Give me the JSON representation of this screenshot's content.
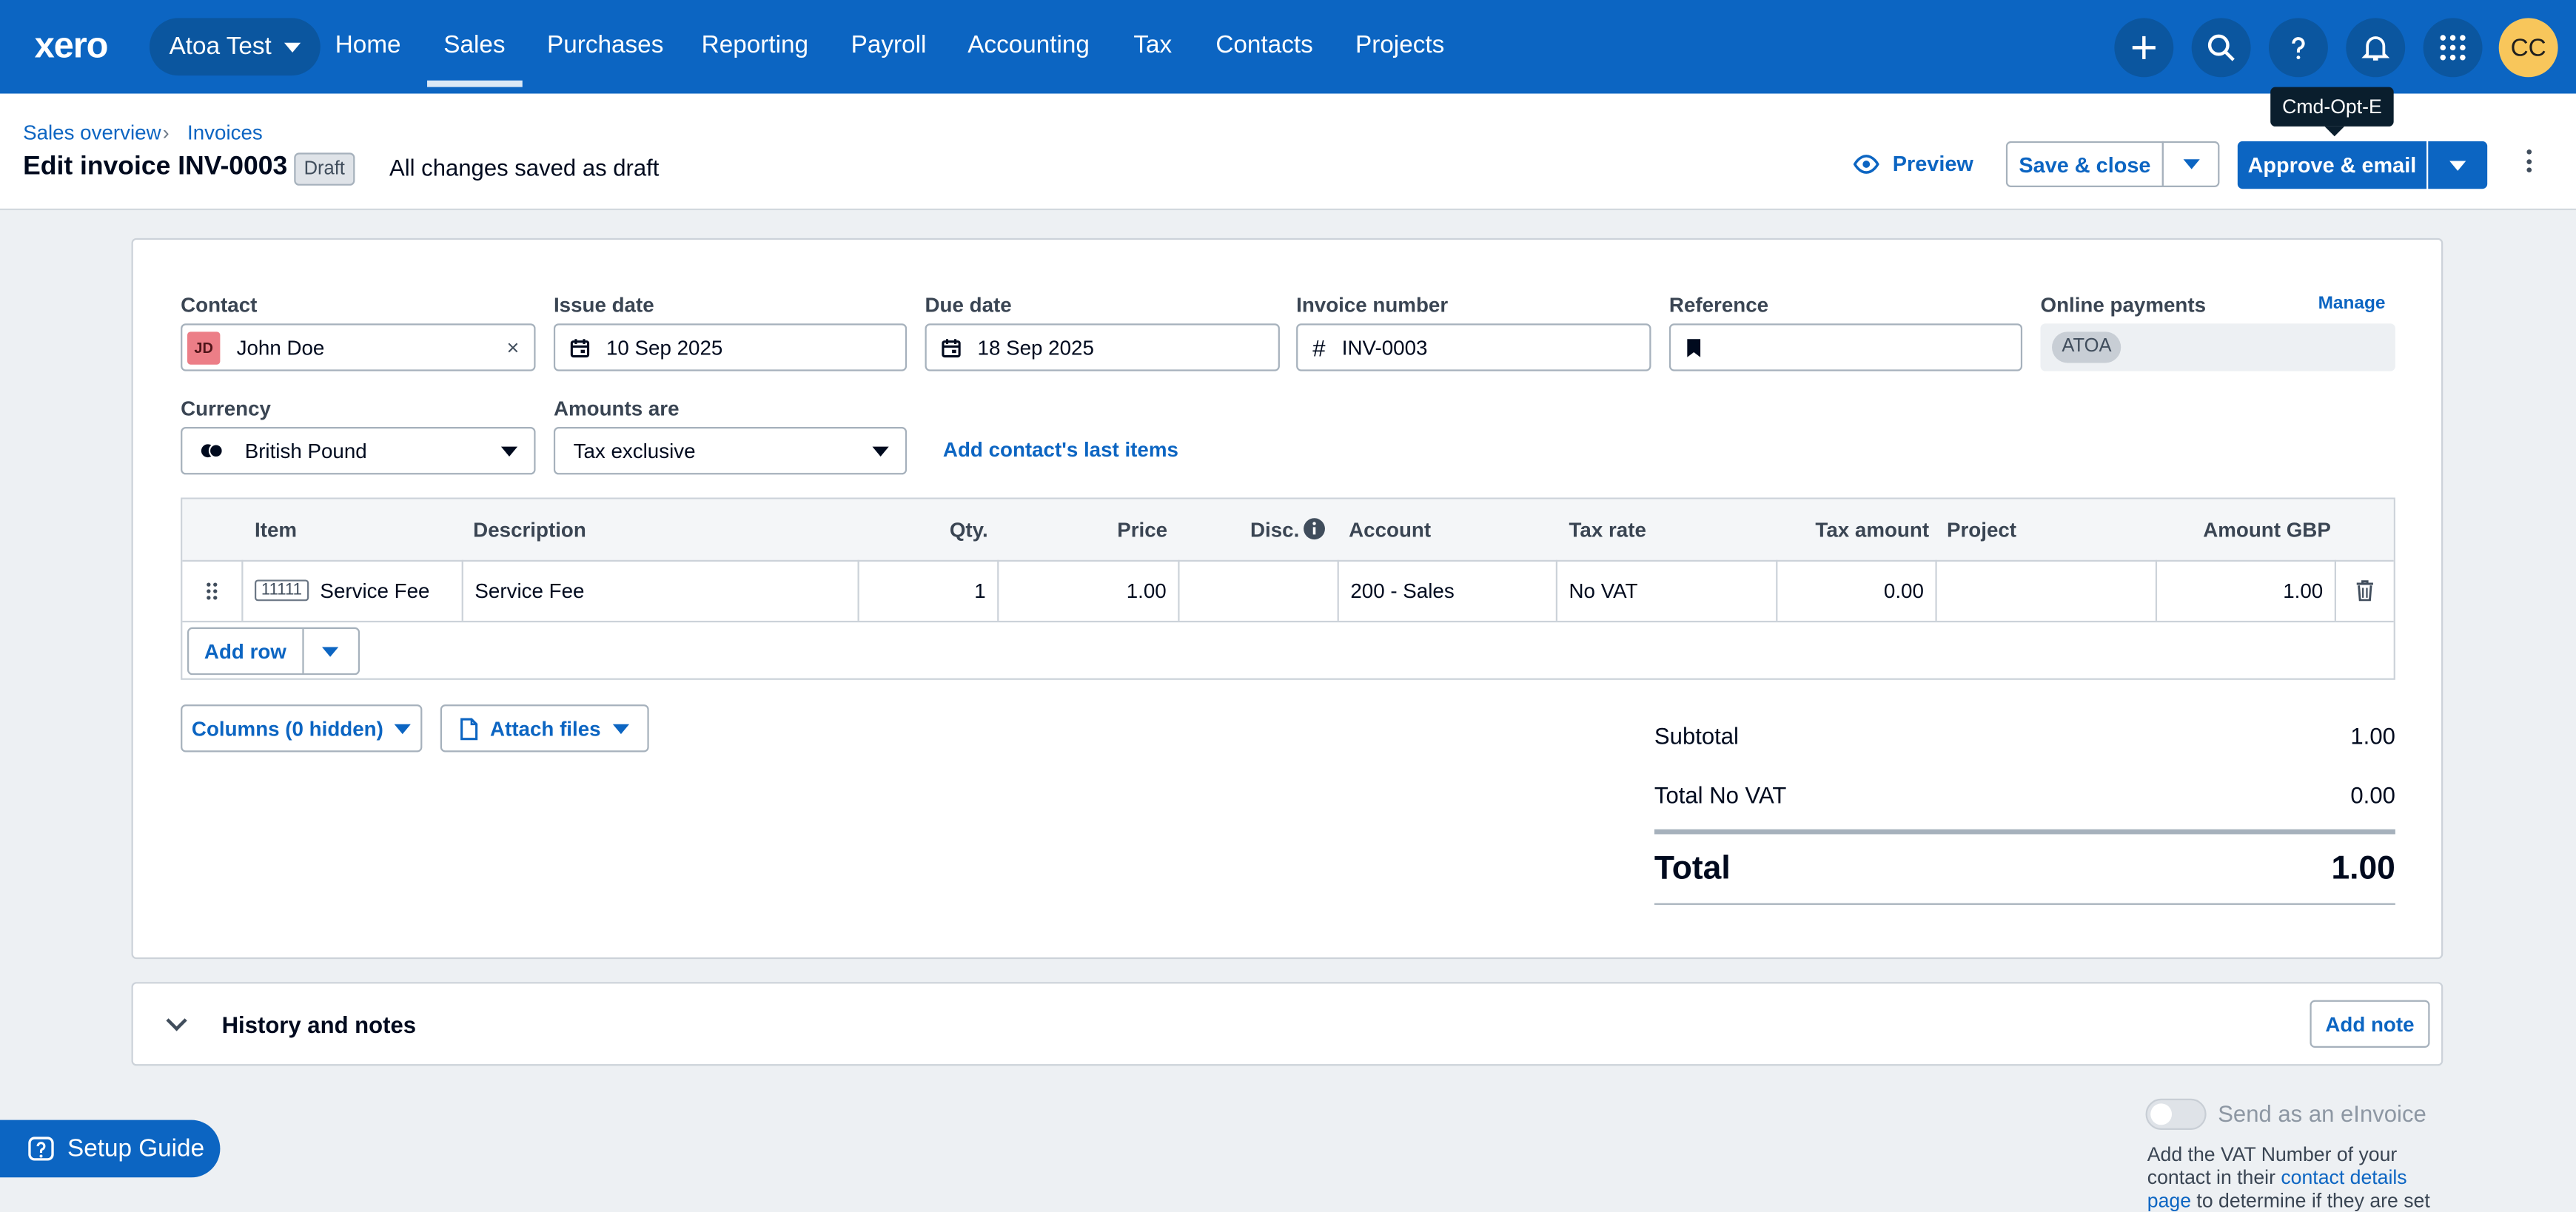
{
  "nav": {
    "logo": "xero",
    "org_name": "Atoa Test",
    "items": [
      "Home",
      "Sales",
      "Purchases",
      "Reporting",
      "Payroll",
      "Accounting",
      "Tax",
      "Contacts",
      "Projects"
    ],
    "active": "Sales",
    "avatar_initials": "CC"
  },
  "breadcrumb": [
    "Sales overview",
    "Invoices"
  ],
  "header": {
    "title": "Edit invoice INV-0003",
    "badge": "Draft",
    "status": "All changes saved as draft",
    "preview": "Preview",
    "save_close": "Save & close",
    "approve_email": "Approve & email",
    "tooltip": "Cmd-Opt-E"
  },
  "form": {
    "contact_label": "Contact",
    "contact_initials": "JD",
    "contact_value": "John Doe",
    "issue_date_label": "Issue date",
    "issue_date_value": "10 Sep 2025",
    "due_date_label": "Due date",
    "due_date_value": "18 Sep 2025",
    "invoice_number_label": "Invoice number",
    "invoice_number_value": "INV-0003",
    "reference_label": "Reference",
    "reference_value": "",
    "online_payments_label": "Online payments",
    "manage": "Manage",
    "online_payments_chip": "ATOA",
    "currency_label": "Currency",
    "currency_value": "British Pound",
    "amounts_label": "Amounts are",
    "amounts_value": "Tax exclusive",
    "add_last_items": "Add contact's last items"
  },
  "table": {
    "headers": {
      "item": "Item",
      "description": "Description",
      "qty": "Qty.",
      "price": "Price",
      "disc": "Disc.",
      "account": "Account",
      "tax_rate": "Tax rate",
      "tax_amount": "Tax amount",
      "project": "Project",
      "amount": "Amount GBP"
    },
    "rows": [
      {
        "item_code": "11111",
        "item_name": "Service Fee",
        "description": "Service Fee",
        "qty": "1",
        "price": "1.00",
        "disc": "",
        "account": "200 - Sales",
        "tax_rate": "No VAT",
        "tax_amount": "0.00",
        "project": "",
        "amount": "1.00"
      }
    ],
    "add_row": "Add row"
  },
  "actions": {
    "columns": "Columns (0 hidden)",
    "attach": "Attach files"
  },
  "totals": {
    "subtotal_label": "Subtotal",
    "subtotal": "1.00",
    "novat_label": "Total No VAT",
    "novat": "0.00",
    "total_label": "Total",
    "total": "1.00"
  },
  "history": {
    "title": "History and notes",
    "add_note": "Add note"
  },
  "setup_guide": "Setup Guide",
  "einvoice": {
    "label": "Send as an eInvoice",
    "help_pre": "Add the VAT Number of your contact in their ",
    "help_link": "contact details page",
    "help_post": " to determine if they are set"
  },
  "colors": {
    "brand": "#0c65c2",
    "nav_dark": "#0b569f",
    "avatar": "#f8c65b",
    "contact_avatar": "#ec7e87"
  }
}
